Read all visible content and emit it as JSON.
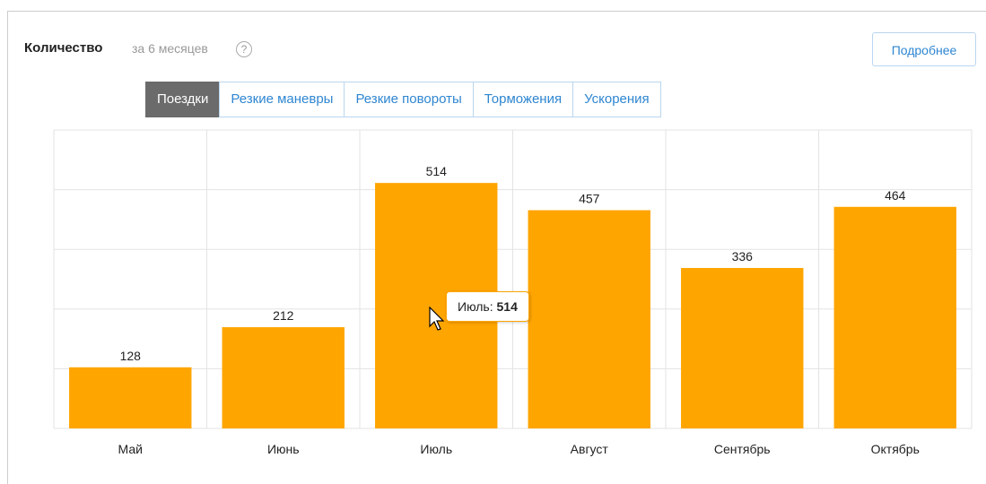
{
  "header": {
    "title": "Количество",
    "subtitle": "за 6 месяцев",
    "button": "Подробнее"
  },
  "tabs": [
    "Поездки",
    "Резкие маневры",
    "Резкие повороты",
    "Торможения",
    "Ускорения"
  ],
  "active_tab": 0,
  "chart_data": {
    "type": "bar",
    "categories": [
      "Май",
      "Июнь",
      "Июль",
      "Август",
      "Сентябрь",
      "Октябрь"
    ],
    "values": [
      128,
      212,
      514,
      457,
      336,
      464
    ],
    "color": "#ffa500",
    "ylim": [
      0,
      625
    ],
    "yticks": [
      0,
      125,
      250,
      375,
      500,
      625
    ],
    "grid": true,
    "tooltip": {
      "label": "Июль:",
      "value": "514"
    }
  }
}
